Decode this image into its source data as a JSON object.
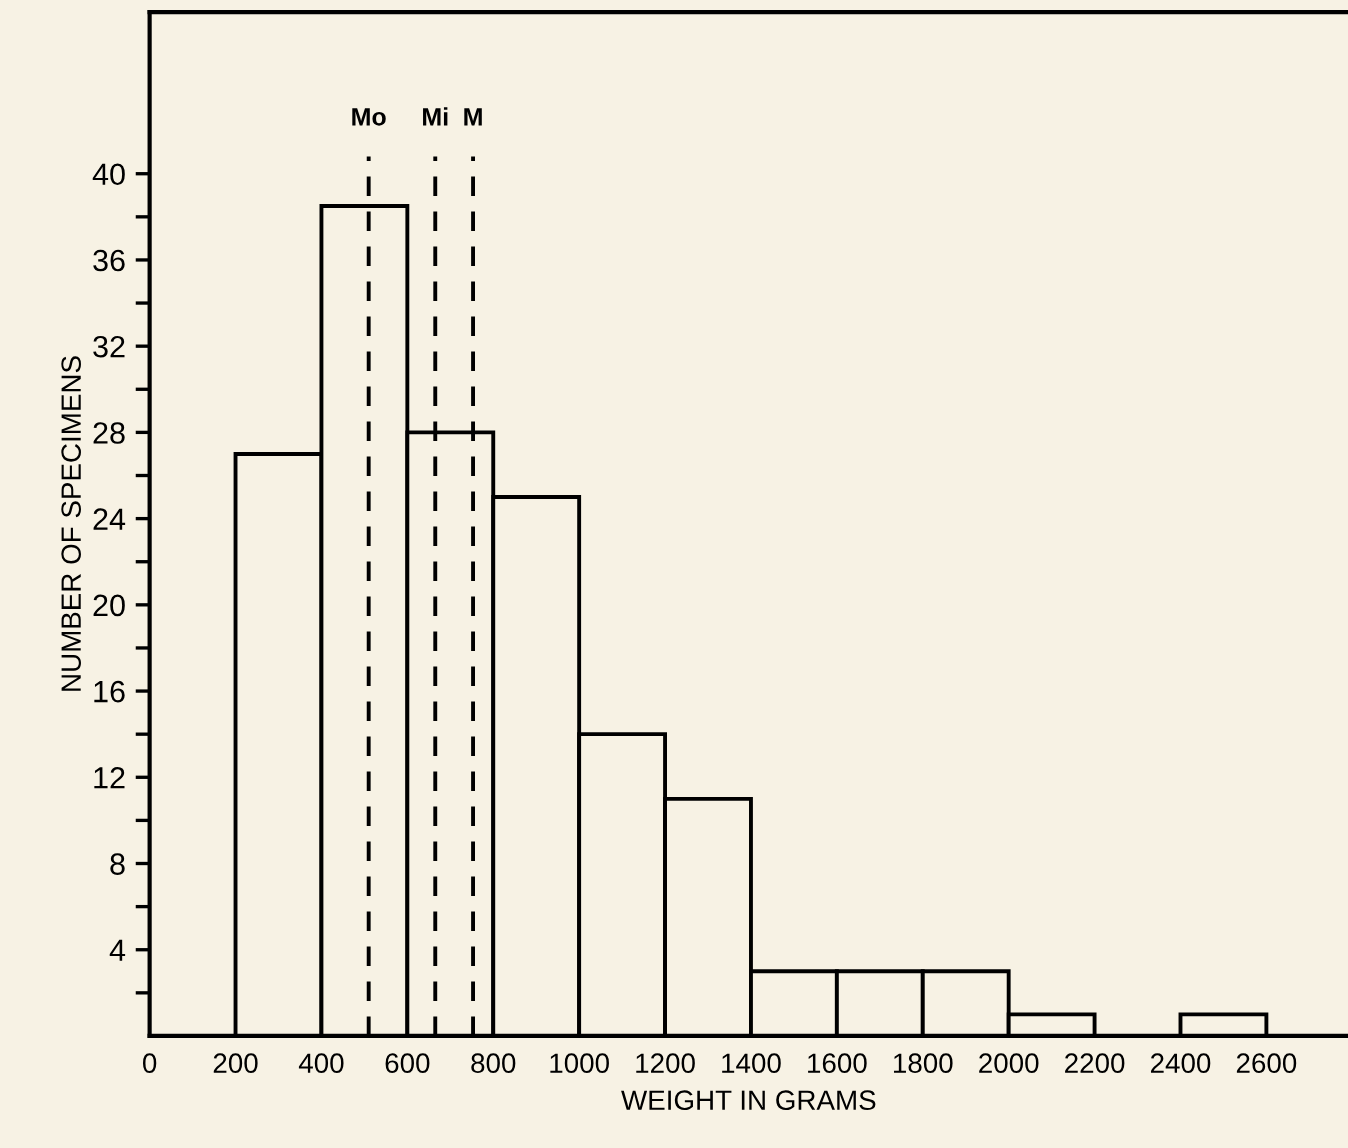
{
  "chart_data": {
    "type": "histogram",
    "xlabel": "WEIGHT IN GRAMS",
    "ylabel": "NUMBER OF SPECIMENS",
    "bins": [
      200,
      400,
      600,
      800,
      1000,
      1200,
      1400,
      1600,
      1800,
      2000,
      2200,
      2400,
      2600
    ],
    "values": [
      27,
      38.5,
      28,
      25,
      14,
      11,
      3,
      3,
      3,
      1,
      0,
      1
    ],
    "color": "#f7f2e4",
    "xlim": [
      0,
      2790
    ],
    "ylim": [
      0,
      47.5
    ],
    "xticks": [
      0,
      200,
      400,
      600,
      800,
      1000,
      1200,
      1400,
      1600,
      1800,
      2000,
      2200,
      2400,
      2600
    ],
    "yticks": [
      {
        "value": 2,
        "label": null
      },
      4,
      {
        "value": 6,
        "label": null
      },
      8,
      {
        "value": 10,
        "label": null
      },
      12,
      {
        "value": 14,
        "label": null
      },
      16,
      {
        "value": 18,
        "label": null
      },
      20,
      {
        "value": 22,
        "label": null
      },
      24,
      {
        "value": 26,
        "label": null
      },
      28,
      {
        "value": 30,
        "label": null
      },
      32,
      {
        "value": 34,
        "label": null
      },
      36,
      {
        "value": 38,
        "label": null
      },
      40
    ],
    "ref_lines": [
      {
        "axis": "x",
        "value": 510,
        "label": "Mo",
        "color": "#000000",
        "line_style": "dashed"
      },
      {
        "axis": "x",
        "value": 665,
        "label": "Mi",
        "color": "#000000",
        "line_style": "dashed"
      },
      {
        "axis": "x",
        "value": 753,
        "label": "M",
        "color": "#000000",
        "line_style": "dashed"
      }
    ],
    "grid": false,
    "legend": false
  }
}
